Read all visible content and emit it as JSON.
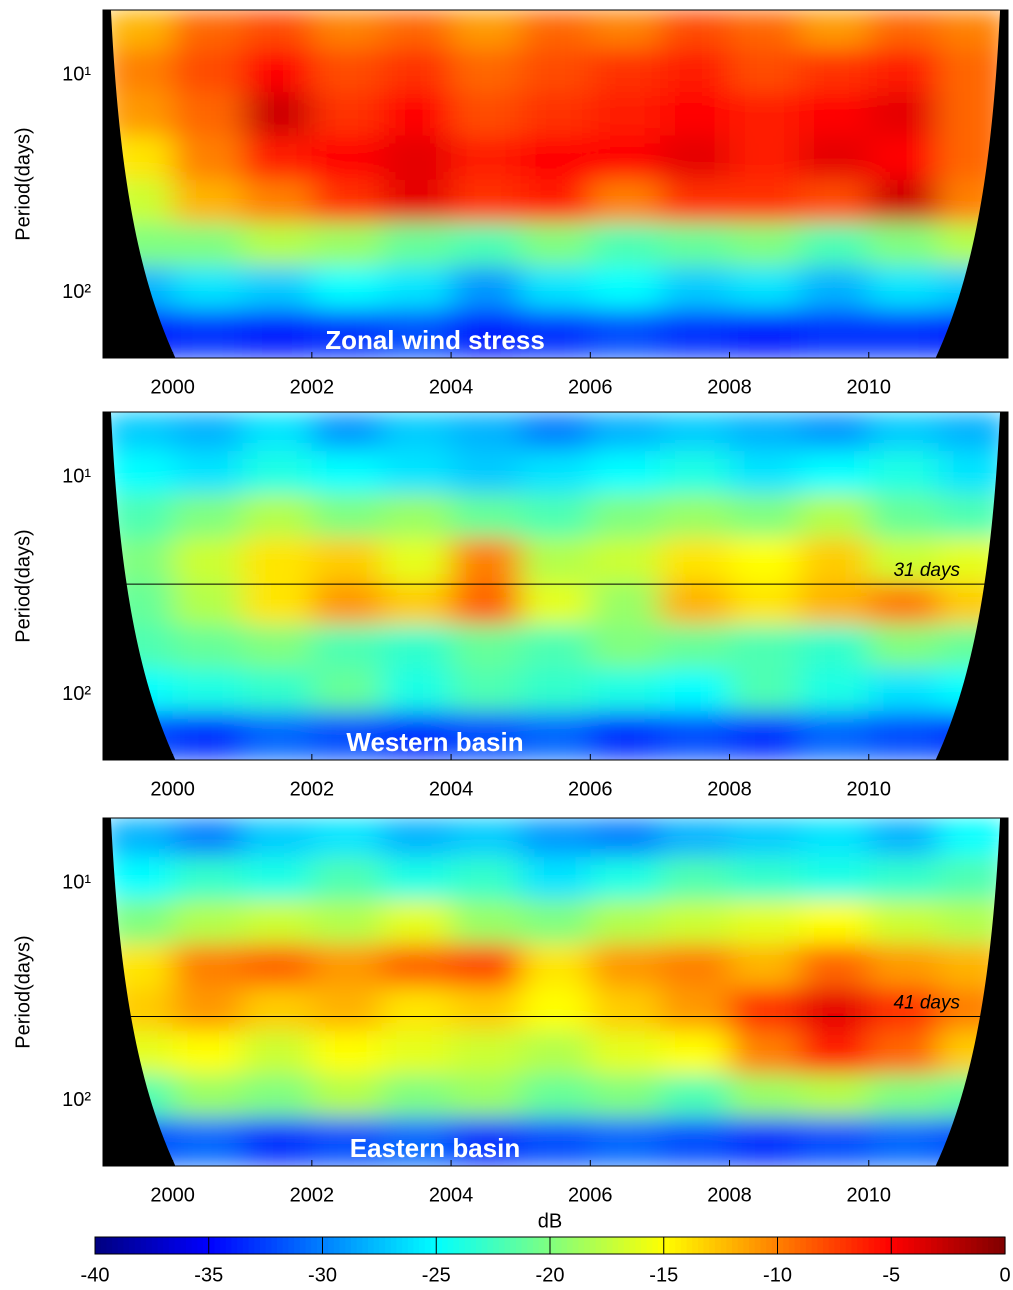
{
  "chart_data": [
    {
      "type": "heatmap",
      "annotation": "Zonal wind stress",
      "ylabel": "Period(days)",
      "colormap": "jet",
      "ylog": true,
      "y_inverted": true,
      "xlim": [
        1999,
        2012
      ],
      "xticks": [
        2000,
        2002,
        2004,
        2006,
        2008,
        2010
      ],
      "ylim": [
        5,
        200
      ],
      "yticks": [
        {
          "value": 10,
          "label": "10¹"
        },
        {
          "value": 100,
          "label": "10²"
        }
      ],
      "x": [
        1999.5,
        2000.5,
        2001.5,
        2002.5,
        2003.5,
        2004.5,
        2005.5,
        2006.5,
        2007.5,
        2008.5,
        2009.5,
        2010.5,
        2011.5
      ],
      "y": [
        6,
        9.5,
        15,
        24,
        38,
        60,
        95,
        150
      ],
      "z": [
        [
          -12,
          -9,
          -8,
          -10,
          -9,
          -11,
          -9,
          -10,
          -8,
          -9,
          -11,
          -9,
          -10
        ],
        [
          -10,
          -8,
          -5,
          -8,
          -7,
          -9,
          -8,
          -7,
          -6,
          -8,
          -7,
          -6,
          -9
        ],
        [
          -11,
          -9,
          -3,
          -7,
          -5,
          -8,
          -7,
          -6,
          -5,
          -6,
          -5,
          -4,
          -9
        ],
        [
          -14,
          -10,
          -6,
          -5,
          -4,
          -6,
          -5,
          -5,
          -4,
          -6,
          -4,
          -5,
          -9
        ],
        [
          -17,
          -12,
          -10,
          -7,
          -4,
          -7,
          -6,
          -10,
          -7,
          -7,
          -8,
          -3,
          -10
        ],
        [
          -20,
          -20,
          -18,
          -19,
          -21,
          -22,
          -20,
          -22,
          -21,
          -20,
          -22,
          -20,
          -18
        ],
        [
          -28,
          -26,
          -27,
          -25,
          -26,
          -29,
          -26,
          -25,
          -27,
          -26,
          -28,
          -26,
          -27
        ],
        [
          -34,
          -33,
          -34,
          -33,
          -32,
          -34,
          -33,
          -32,
          -33,
          -34,
          -33,
          -33,
          -34
        ]
      ]
    },
    {
      "type": "heatmap",
      "annotation": "Western basin",
      "ylabel": "Period(days)",
      "colormap": "jet",
      "ylog": true,
      "y_inverted": true,
      "xlim": [
        1999,
        2012
      ],
      "xticks": [
        2000,
        2002,
        2004,
        2006,
        2008,
        2010
      ],
      "ylim": [
        5,
        200
      ],
      "yticks": [
        {
          "value": 10,
          "label": "10¹"
        },
        {
          "value": 100,
          "label": "10²"
        }
      ],
      "hline": {
        "value": 31,
        "label": "31 days"
      },
      "x": [
        1999.5,
        2000.5,
        2001.5,
        2002.5,
        2003.5,
        2004.5,
        2005.5,
        2006.5,
        2007.5,
        2008.5,
        2009.5,
        2010.5,
        2011.5
      ],
      "y": [
        6,
        9.5,
        15,
        24,
        38,
        60,
        95,
        150
      ],
      "z": [
        [
          -27,
          -28,
          -26,
          -29,
          -27,
          -28,
          -30,
          -28,
          -27,
          -28,
          -29,
          -27,
          -28
        ],
        [
          -25,
          -26,
          -24,
          -25,
          -26,
          -27,
          -26,
          -25,
          -24,
          -26,
          -25,
          -24,
          -26
        ],
        [
          -22,
          -20,
          -18,
          -20,
          -19,
          -21,
          -22,
          -20,
          -19,
          -20,
          -18,
          -21,
          -22
        ],
        [
          -20,
          -17,
          -14,
          -13,
          -16,
          -10,
          -18,
          -17,
          -14,
          -15,
          -13,
          -17,
          -16
        ],
        [
          -21,
          -18,
          -14,
          -11,
          -13,
          -9,
          -16,
          -19,
          -12,
          -14,
          -12,
          -10,
          -13
        ],
        [
          -22,
          -21,
          -20,
          -22,
          -23,
          -21,
          -22,
          -20,
          -21,
          -22,
          -23,
          -20,
          -21
        ],
        [
          -25,
          -24,
          -23,
          -21,
          -24,
          -22,
          -23,
          -24,
          -25,
          -22,
          -24,
          -26,
          -25
        ],
        [
          -32,
          -33,
          -31,
          -32,
          -33,
          -32,
          -31,
          -33,
          -32,
          -33,
          -31,
          -32,
          -33
        ]
      ]
    },
    {
      "type": "heatmap",
      "annotation": "Eastern basin",
      "ylabel": "Period(days)",
      "colormap": "jet",
      "ylog": true,
      "y_inverted": true,
      "xlim": [
        1999,
        2012
      ],
      "xticks": [
        2000,
        2002,
        2004,
        2006,
        2008,
        2010
      ],
      "ylim": [
        5,
        200
      ],
      "yticks": [
        {
          "value": 10,
          "label": "10¹"
        },
        {
          "value": 100,
          "label": "10²"
        }
      ],
      "hline": {
        "value": 41,
        "label": "41 days"
      },
      "x": [
        1999.5,
        2000.5,
        2001.5,
        2002.5,
        2003.5,
        2004.5,
        2005.5,
        2006.5,
        2007.5,
        2008.5,
        2009.5,
        2010.5,
        2011.5
      ],
      "y": [
        6,
        9.5,
        15,
        24,
        38,
        60,
        95,
        150
      ],
      "z": [
        [
          -28,
          -30,
          -27,
          -26,
          -28,
          -27,
          -29,
          -30,
          -28,
          -27,
          -26,
          -28,
          -25
        ],
        [
          -25,
          -23,
          -24,
          -22,
          -24,
          -23,
          -26,
          -24,
          -22,
          -23,
          -24,
          -23,
          -22
        ],
        [
          -20,
          -18,
          -17,
          -18,
          -16,
          -19,
          -20,
          -18,
          -17,
          -16,
          -15,
          -17,
          -18
        ],
        [
          -14,
          -10,
          -9,
          -11,
          -9,
          -8,
          -14,
          -11,
          -10,
          -12,
          -9,
          -11,
          -12
        ],
        [
          -13,
          -11,
          -13,
          -12,
          -14,
          -13,
          -15,
          -13,
          -11,
          -7,
          -4,
          -7,
          -10
        ],
        [
          -16,
          -15,
          -17,
          -15,
          -16,
          -17,
          -18,
          -16,
          -15,
          -10,
          -6,
          -9,
          -13
        ],
        [
          -22,
          -19,
          -20,
          -18,
          -20,
          -19,
          -21,
          -20,
          -22,
          -19,
          -18,
          -20,
          -21
        ],
        [
          -32,
          -31,
          -33,
          -32,
          -31,
          -33,
          -32,
          -31,
          -32,
          -33,
          -32,
          -31,
          -32
        ]
      ]
    }
  ],
  "colorbar": {
    "label": "dB",
    "lim": [
      -40,
      0
    ],
    "ticks": [
      -40,
      -35,
      -30,
      -25,
      -20,
      -15,
      -10,
      -5,
      0
    ]
  }
}
